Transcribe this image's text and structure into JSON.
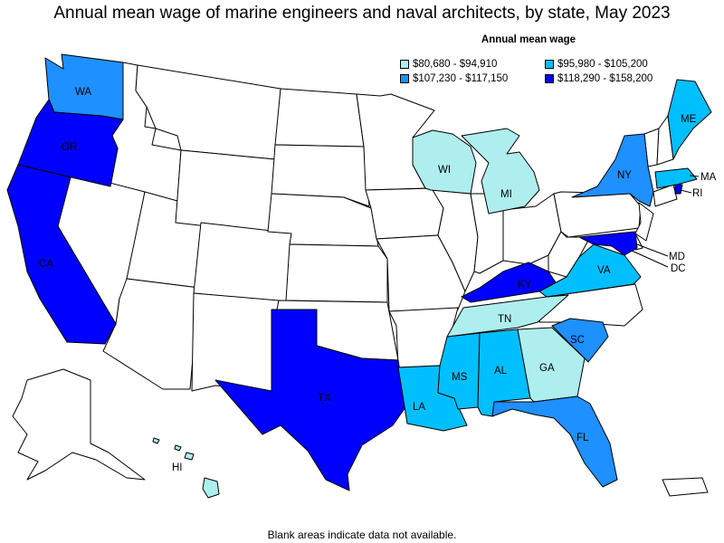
{
  "title": "Annual mean wage of marine engineers and naval architects, by state, May 2023",
  "legend": {
    "title": "Annual mean wage",
    "items": [
      {
        "label": "$80,680 - $94,910",
        "color": "#aeeeee"
      },
      {
        "label": "$95,980 - $105,200",
        "color": "#00bfff"
      },
      {
        "label": "$107,230 - $117,150",
        "color": "#1e90ff"
      },
      {
        "label": "$118,290 - $158,200",
        "color": "#0000ff"
      }
    ]
  },
  "footnote": "Blank areas indicate data not available.",
  "states": [
    {
      "code": "WA",
      "label": "WA",
      "tier": 2
    },
    {
      "code": "OR",
      "label": "OR",
      "tier": 3
    },
    {
      "code": "CA",
      "label": "CA",
      "tier": 3
    },
    {
      "code": "TX",
      "label": "TX",
      "tier": 3
    },
    {
      "code": "LA",
      "label": "LA",
      "tier": 1
    },
    {
      "code": "MS",
      "label": "MS",
      "tier": 1
    },
    {
      "code": "AL",
      "label": "AL",
      "tier": 1
    },
    {
      "code": "GA",
      "label": "GA",
      "tier": 0
    },
    {
      "code": "FL",
      "label": "FL",
      "tier": 2
    },
    {
      "code": "SC",
      "label": "SC",
      "tier": 2
    },
    {
      "code": "TN",
      "label": "TN",
      "tier": 0
    },
    {
      "code": "KY",
      "label": "KY",
      "tier": 3
    },
    {
      "code": "VA",
      "label": "VA",
      "tier": 1
    },
    {
      "code": "MD",
      "label": "MD",
      "tier": 3
    },
    {
      "code": "DC",
      "label": "DC",
      "tier": 3
    },
    {
      "code": "NY",
      "label": "NY",
      "tier": 2
    },
    {
      "code": "MA",
      "label": "MA",
      "tier": 1
    },
    {
      "code": "RI",
      "label": "RI",
      "tier": 3
    },
    {
      "code": "ME",
      "label": "ME",
      "tier": 1
    },
    {
      "code": "MI",
      "label": "MI",
      "tier": 0
    },
    {
      "code": "WI",
      "label": "WI",
      "tier": 0
    },
    {
      "code": "HI",
      "label": "HI",
      "tier": 0
    }
  ]
}
